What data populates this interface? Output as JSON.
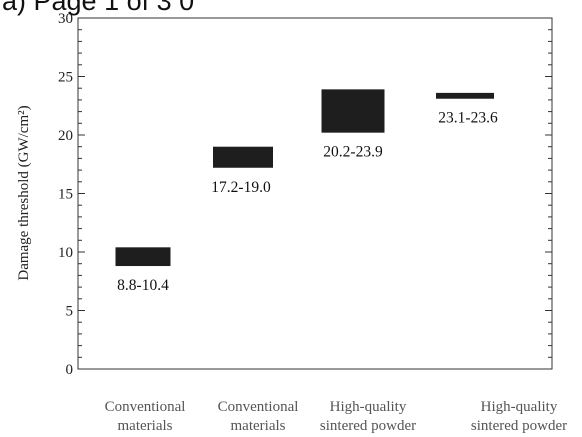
{
  "page": {
    "header_fragment": "a) Page 1 of 3 0"
  },
  "chart_data": {
    "type": "bar",
    "title": "",
    "xlabel": "",
    "ylabel": "Damage threshold (GW/cm²)",
    "ylim": [
      0,
      30
    ],
    "yticks": [
      0,
      5,
      10,
      15,
      20,
      25,
      30
    ],
    "grid": false,
    "categories": [
      [
        "Conventional",
        "materials"
      ],
      [
        "Conventional",
        "materials"
      ],
      [
        "High-quality",
        "sintered powder"
      ],
      [
        "High-quality",
        "sintered powder"
      ]
    ],
    "ranges": [
      {
        "low": 8.8,
        "high": 10.4,
        "label": "8.8-10.4"
      },
      {
        "low": 17.2,
        "high": 19.0,
        "label": "17.2-19.0"
      },
      {
        "low": 20.2,
        "high": 23.9,
        "label": "20.2-23.9"
      },
      {
        "low": 23.1,
        "high": 23.6,
        "label": "23.1-23.6"
      }
    ],
    "bar_color": "#1e1e1e"
  }
}
